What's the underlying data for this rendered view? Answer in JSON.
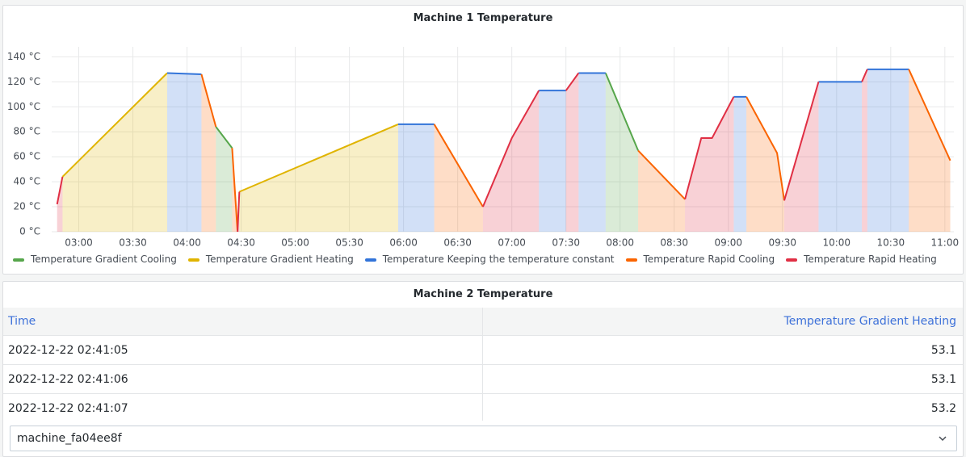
{
  "chart_data": {
    "type": "area",
    "title": "Machine 1 Temperature",
    "xlim": [
      "02:45",
      "11:05"
    ],
    "ylim": [
      0,
      148
    ],
    "xticks": [
      "03:00",
      "03:30",
      "04:00",
      "04:30",
      "05:00",
      "05:30",
      "06:00",
      "06:30",
      "07:00",
      "07:30",
      "08:00",
      "08:30",
      "09:00",
      "09:30",
      "10:00",
      "10:30",
      "11:00"
    ],
    "yticks": [
      {
        "value": 0,
        "label": "0 °C"
      },
      {
        "value": 20,
        "label": "20 °C"
      },
      {
        "value": 40,
        "label": "40 °C"
      },
      {
        "value": 60,
        "label": "60 °C"
      },
      {
        "value": 80,
        "label": "80 °C"
      },
      {
        "value": 100,
        "label": "100 °C"
      },
      {
        "value": 120,
        "label": "120 °C"
      },
      {
        "value": 140,
        "label": "140 °C"
      }
    ],
    "grid": true,
    "series": [
      {
        "name": "Temperature Gradient Cooling",
        "color": "#56a64b",
        "x": [
          "04:16",
          "04:25",
          null,
          "07:52",
          "08:10"
        ],
        "values": [
          84,
          67,
          null,
          127,
          65
        ]
      },
      {
        "name": "Temperature Gradient Heating",
        "color": "#e0b400",
        "x": [
          "02:51",
          "03:49",
          null,
          "04:29",
          "05:57"
        ],
        "values": [
          44,
          127,
          null,
          32,
          86
        ]
      },
      {
        "name": "Temperature Keeping the temperature constant",
        "color": "#3274d9",
        "x": [
          "03:49",
          "04:08",
          null,
          "05:57",
          "06:17",
          null,
          "07:15",
          "07:30",
          null,
          "07:37",
          "07:52",
          null,
          "09:03",
          "09:10",
          null,
          "09:50",
          "10:14",
          null,
          "10:17",
          "10:40"
        ],
        "values": [
          127,
          126,
          null,
          86,
          86,
          null,
          113,
          113,
          null,
          127,
          127,
          null,
          108,
          108,
          null,
          120,
          120,
          null,
          130,
          130
        ]
      },
      {
        "name": "Temperature Rapid Cooling",
        "color": "#fa6400",
        "x": [
          "04:08",
          "04:16",
          null,
          "04:25",
          "04:28",
          null,
          "06:17",
          "06:44",
          null,
          "08:10",
          "08:36",
          null,
          "09:10",
          "09:27",
          "09:31",
          null,
          "10:40",
          "11:03"
        ],
        "values": [
          126,
          84,
          null,
          67,
          0,
          null,
          86,
          20,
          null,
          65,
          26,
          null,
          108,
          63,
          25,
          null,
          130,
          57
        ]
      },
      {
        "name": "Temperature Rapid Heating",
        "color": "#e02f44",
        "x": [
          "02:48",
          "02:51",
          null,
          "04:28",
          "04:29",
          null,
          "06:44",
          "07:00",
          "07:15",
          null,
          "07:30",
          "07:37",
          null,
          "08:36",
          "08:45",
          "08:51",
          "09:03",
          null,
          "09:31",
          "09:40",
          "09:50",
          null,
          "10:14",
          "10:17"
        ],
        "values": [
          22,
          44,
          null,
          0,
          32,
          null,
          20,
          75,
          113,
          null,
          113,
          127,
          null,
          26,
          75,
          75,
          108,
          null,
          25,
          70,
          120,
          null,
          120,
          130
        ]
      }
    ]
  },
  "table": {
    "title": "Machine 2 Temperature",
    "columns": [
      "Time",
      "Temperature Gradient Heating"
    ],
    "rows": [
      [
        "2022-12-22 02:41:05",
        53.1
      ],
      [
        "2022-12-22 02:41:06",
        53.1
      ],
      [
        "2022-12-22 02:41:07",
        53.2
      ]
    ]
  },
  "dropdown": {
    "value": "machine_fa04ee8f"
  }
}
